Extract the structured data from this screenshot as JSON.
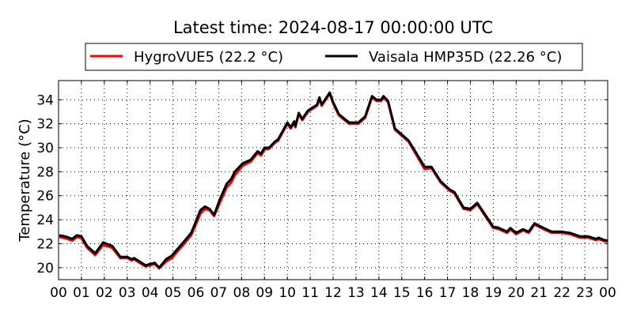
{
  "chart_data": {
    "type": "line",
    "title": "Latest time: 2024-08-17 00:00:00 UTC",
    "xlabel": "",
    "ylabel": "Temperature (°C)",
    "xlim": [
      0,
      24
    ],
    "ylim": [
      19.0,
      35.6
    ],
    "x_ticks": [
      0,
      1,
      2,
      3,
      4,
      5,
      6,
      7,
      8,
      9,
      10,
      11,
      12,
      13,
      14,
      15,
      16,
      17,
      18,
      19,
      20,
      21,
      22,
      23,
      24
    ],
    "x_tick_labels": [
      "00",
      "01",
      "02",
      "03",
      "04",
      "05",
      "06",
      "07",
      "08",
      "09",
      "10",
      "11",
      "12",
      "13",
      "14",
      "15",
      "16",
      "17",
      "18",
      "19",
      "20",
      "21",
      "22",
      "23",
      "00"
    ],
    "y_ticks": [
      20,
      22,
      24,
      26,
      28,
      30,
      32,
      34
    ],
    "y_tick_labels": [
      "20",
      "22",
      "24",
      "26",
      "28",
      "30",
      "32",
      "34"
    ],
    "grid": true,
    "legend_position": "top-center (above plot)",
    "x_unit": "hour of day (UTC)",
    "x": [
      0.03,
      0.3,
      0.6,
      0.8,
      1.0,
      1.25,
      1.6,
      1.95,
      2.35,
      2.7,
      3.0,
      3.2,
      3.3,
      3.8,
      4.2,
      4.4,
      4.7,
      4.95,
      5.4,
      5.8,
      6.2,
      6.4,
      6.6,
      6.8,
      7.05,
      7.35,
      7.55,
      7.7,
      8.05,
      8.4,
      8.7,
      8.85,
      9.0,
      9.2,
      9.45,
      9.6,
      10.0,
      10.15,
      10.3,
      10.35,
      10.5,
      10.65,
      10.9,
      11.3,
      11.4,
      11.5,
      11.85,
      12.0,
      12.25,
      12.7,
      13.1,
      13.4,
      13.7,
      13.9,
      14.1,
      14.2,
      14.4,
      14.7,
      15.3,
      16.0,
      16.3,
      16.7,
      17.1,
      17.3,
      17.7,
      18.0,
      18.3,
      18.65,
      19.0,
      19.2,
      19.6,
      19.75,
      20.0,
      20.3,
      20.55,
      20.8,
      21.1,
      21.55,
      22.0,
      22.35,
      22.8,
      23.15,
      23.5,
      23.6,
      23.85,
      24.0
    ],
    "series": [
      {
        "name": "HygroVUE5 (22.2 °C)",
        "color": "#ff0000",
        "values": [
          22.55,
          22.45,
          22.25,
          22.55,
          22.45,
          21.65,
          21.05,
          21.9,
          21.65,
          20.8,
          20.8,
          20.6,
          20.7,
          20.1,
          20.3,
          19.95,
          20.5,
          20.8,
          21.8,
          22.7,
          24.5,
          24.9,
          24.8,
          24.3,
          25.4,
          26.7,
          27.1,
          27.7,
          28.5,
          28.85,
          29.55,
          29.35,
          29.85,
          29.9,
          30.4,
          30.6,
          32.0,
          31.6,
          32.1,
          31.7,
          32.8,
          32.3,
          33.0,
          33.5,
          34.1,
          33.5,
          34.5,
          33.7,
          32.7,
          32.0,
          32.0,
          32.5,
          34.2,
          33.9,
          33.9,
          34.2,
          33.8,
          31.5,
          30.5,
          28.2,
          28.3,
          27.1,
          26.4,
          26.2,
          24.9,
          24.8,
          25.3,
          24.3,
          23.3,
          23.25,
          22.9,
          23.2,
          22.8,
          23.1,
          22.9,
          23.6,
          23.3,
          22.9,
          22.9,
          22.8,
          22.5,
          22.5,
          22.3,
          22.4,
          22.2,
          22.2
        ]
      },
      {
        "name": "Vaisala HMP35D (22.26 °C)",
        "color": "#000000",
        "values": [
          22.7,
          22.6,
          22.4,
          22.7,
          22.6,
          21.8,
          21.2,
          22.1,
          21.8,
          20.9,
          20.9,
          20.7,
          20.8,
          20.2,
          20.4,
          20.0,
          20.7,
          21.0,
          22.0,
          22.9,
          24.8,
          25.1,
          24.9,
          24.4,
          25.7,
          27.0,
          27.4,
          28.0,
          28.7,
          29.0,
          29.7,
          29.5,
          30.0,
          30.0,
          30.5,
          30.7,
          32.1,
          31.7,
          32.2,
          31.8,
          32.9,
          32.4,
          33.1,
          33.6,
          34.2,
          33.6,
          34.6,
          33.8,
          32.8,
          32.1,
          32.1,
          32.6,
          34.3,
          34.0,
          34.0,
          34.3,
          33.9,
          31.6,
          30.6,
          28.4,
          28.4,
          27.2,
          26.5,
          26.3,
          25.0,
          24.9,
          25.4,
          24.4,
          23.4,
          23.35,
          23.0,
          23.3,
          22.9,
          23.2,
          23.0,
          23.7,
          23.4,
          23.0,
          23.0,
          22.9,
          22.6,
          22.6,
          22.4,
          22.5,
          22.3,
          22.26
        ]
      }
    ]
  }
}
